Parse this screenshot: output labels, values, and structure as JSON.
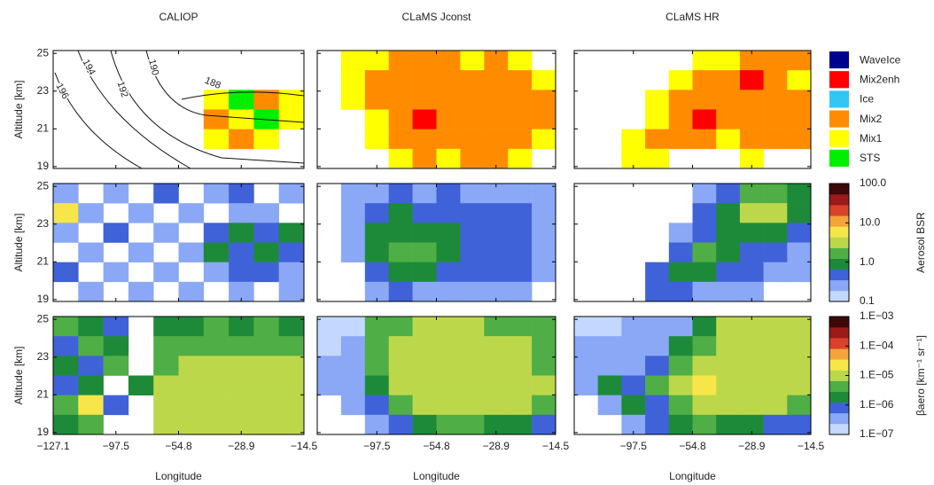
{
  "chart_data": [
    {
      "type": "heatmap",
      "title": "CALIOP",
      "ylabel": "Altitude [km]",
      "ylim": [
        18.9,
        25.15
      ],
      "yticks": [
        19,
        21,
        23,
        25
      ],
      "ytick_labels": true,
      "contours": [
        196,
        194,
        192,
        190,
        188
      ],
      "z": [
        [
          null,
          null,
          null,
          null,
          null,
          null,
          null,
          null,
          null,
          null
        ],
        [
          null,
          null,
          null,
          null,
          null,
          null,
          null,
          null,
          null,
          null
        ],
        [
          null,
          null,
          null,
          null,
          null,
          null,
          4,
          5,
          3,
          4
        ],
        [
          null,
          null,
          null,
          null,
          null,
          null,
          3,
          4,
          5,
          4
        ],
        [
          null,
          null,
          null,
          null,
          null,
          null,
          4,
          3,
          4,
          null
        ],
        [
          null,
          null,
          null,
          null,
          null,
          null,
          null,
          null,
          null,
          null
        ]
      ]
    },
    {
      "type": "heatmap",
      "title": "CLaMS Jconst",
      "ylim": [
        18.9,
        25.15
      ],
      "yticks": [
        19,
        21,
        23,
        25
      ],
      "ytick_labels": false,
      "z": [
        [
          null,
          4,
          4,
          3,
          3,
          3,
          4,
          3,
          4,
          null
        ],
        [
          null,
          4,
          3,
          3,
          3,
          3,
          3,
          3,
          3,
          4
        ],
        [
          null,
          4,
          3,
          3,
          3,
          3,
          3,
          3,
          3,
          3
        ],
        [
          null,
          null,
          4,
          3,
          1,
          3,
          3,
          3,
          3,
          3
        ],
        [
          null,
          null,
          4,
          3,
          3,
          3,
          3,
          3,
          3,
          4
        ],
        [
          null,
          null,
          null,
          4,
          3,
          4,
          3,
          3,
          4,
          null
        ]
      ]
    },
    {
      "type": "heatmap",
      "title": "CLaMS HR",
      "ylim": [
        18.9,
        25.15
      ],
      "yticks": [
        19,
        21,
        23,
        25
      ],
      "ytick_labels": false,
      "z": [
        [
          null,
          null,
          null,
          null,
          null,
          4,
          4,
          3,
          3,
          3
        ],
        [
          null,
          null,
          null,
          null,
          4,
          3,
          3,
          1,
          3,
          4
        ],
        [
          null,
          null,
          null,
          4,
          3,
          3,
          3,
          3,
          3,
          3
        ],
        [
          null,
          null,
          null,
          4,
          3,
          1,
          3,
          3,
          3,
          3
        ],
        [
          null,
          null,
          4,
          3,
          3,
          3,
          4,
          3,
          3,
          3
        ],
        [
          null,
          null,
          4,
          4,
          null,
          null,
          null,
          4,
          null,
          null
        ]
      ]
    },
    {
      "type": "heatmap",
      "ylabel": "Altitude [km]",
      "ylim": [
        18.9,
        25.15
      ],
      "yticks": [
        19,
        21,
        23,
        25
      ],
      "ytick_labels": true,
      "z": [
        [
          0.3,
          null,
          0.2,
          null,
          0.5,
          null,
          0.2,
          0.4,
          null,
          0.2
        ],
        [
          5,
          0.2,
          null,
          0.3,
          null,
          0.2,
          null,
          0.3,
          0.2,
          null
        ],
        [
          0.2,
          null,
          0.4,
          null,
          0.2,
          null,
          0.6,
          0.8,
          0.5,
          0.9
        ],
        [
          null,
          0.3,
          null,
          0.2,
          null,
          0.3,
          0.7,
          0.5,
          0.9,
          0.6
        ],
        [
          0.4,
          null,
          0.2,
          null,
          0.3,
          null,
          0.3,
          0.6,
          0.4,
          0.3
        ],
        [
          null,
          0.2,
          null,
          0.3,
          null,
          0.2,
          null,
          0.2,
          null,
          0.3
        ]
      ]
    },
    {
      "type": "heatmap",
      "ylim": [
        18.9,
        25.15
      ],
      "yticks": [
        19,
        21,
        23,
        25
      ],
      "ytick_labels": false,
      "z": [
        [
          null,
          0.2,
          0.3,
          0.5,
          0.3,
          0.4,
          0.3,
          0.3,
          0.2,
          0.2
        ],
        [
          null,
          0.3,
          0.6,
          0.8,
          0.6,
          0.5,
          0.4,
          0.5,
          0.4,
          0.3
        ],
        [
          null,
          0.3,
          0.8,
          1.2,
          1.0,
          0.7,
          0.5,
          0.6,
          0.5,
          0.3
        ],
        [
          null,
          0.2,
          0.9,
          1.5,
          2.0,
          0.8,
          0.4,
          0.6,
          0.5,
          0.3
        ],
        [
          null,
          null,
          0.5,
          0.9,
          0.8,
          0.6,
          0.5,
          0.5,
          0.4,
          0.2
        ],
        [
          null,
          null,
          0.2,
          0.4,
          0.3,
          0.3,
          0.2,
          0.3,
          0.2,
          null
        ]
      ]
    },
    {
      "type": "heatmap",
      "ylim": [
        18.9,
        25.15
      ],
      "yticks": [
        19,
        21,
        23,
        25
      ],
      "ytick_labels": false,
      "z": [
        [
          null,
          null,
          null,
          null,
          null,
          0.3,
          0.6,
          1.5,
          1.8,
          0.8
        ],
        [
          null,
          null,
          null,
          null,
          null,
          0.6,
          1.2,
          2.5,
          3.0,
          1.2
        ],
        [
          null,
          null,
          null,
          null,
          0.3,
          0.6,
          0.8,
          0.9,
          0.7,
          0.4
        ],
        [
          null,
          null,
          null,
          null,
          0.4,
          1.5,
          0.8,
          0.5,
          0.4,
          0.3
        ],
        [
          null,
          null,
          null,
          0.5,
          1.2,
          0.7,
          0.5,
          0.4,
          0.3,
          0.2
        ],
        [
          null,
          null,
          null,
          0.6,
          0.4,
          0.3,
          0.2,
          0.2,
          null,
          null
        ]
      ]
    },
    {
      "type": "heatmap",
      "ylabel": "Altitude [km]",
      "xlabel": "Longitude",
      "ylim": [
        18.9,
        25.15
      ],
      "yticks": [
        19,
        21,
        23,
        25
      ],
      "ytick_labels": true,
      "xticks": [
        "−127.1",
        "−97.5",
        "−54.8",
        "−28.9",
        "−14.5"
      ],
      "z": [
        [
          3e-06,
          2e-06,
          1e-06,
          null,
          1.5e-06,
          2e-06,
          3e-06,
          2e-06,
          3e-06,
          2e-06
        ],
        [
          1e-06,
          4e-06,
          2e-06,
          null,
          3e-06,
          5e-06,
          4e-06,
          5e-06,
          4e-06,
          5e-06
        ],
        [
          2e-06,
          1e-06,
          3e-06,
          null,
          6e-06,
          8e-06,
          7e-06,
          8e-06,
          9e-06,
          7e-06
        ],
        [
          1e-06,
          2e-06,
          null,
          2e-06,
          8e-06,
          9e-06,
          1e-05,
          9e-06,
          1.2e-05,
          8e-06
        ],
        [
          3e-06,
          2.5e-05,
          1e-06,
          null,
          7e-06,
          9e-06,
          8e-06,
          1.2e-05,
          9e-06,
          1e-05
        ],
        [
          2e-06,
          3e-06,
          null,
          null,
          8e-06,
          1e-05,
          9e-06,
          8e-06,
          1e-05,
          9e-06
        ]
      ]
    },
    {
      "type": "heatmap",
      "xlabel": "Longitude",
      "ylim": [
        18.9,
        25.15
      ],
      "yticks": [
        19,
        21,
        23,
        25
      ],
      "ytick_labels": false,
      "xticks": [
        null,
        "−97.5",
        "−54.8",
        "−28.9",
        "−14.5"
      ],
      "z": [
        [
          2e-07,
          2e-07,
          3e-06,
          6e-06,
          7e-06,
          8e-06,
          7e-06,
          6e-06,
          5e-06,
          3e-06
        ],
        [
          2e-07,
          3e-07,
          4e-06,
          9e-06,
          1e-05,
          9e-06,
          8e-06,
          9e-06,
          8e-06,
          5e-06
        ],
        [
          2.5e-07,
          4e-07,
          5e-06,
          1e-05,
          1.3e-05,
          1.1e-05,
          1e-05,
          1.1e-05,
          9e-06,
          6e-06
        ],
        [
          3e-07,
          4e-07,
          2e-06,
          9e-06,
          1.4e-05,
          1.5e-05,
          1.2e-05,
          1e-05,
          9e-06,
          7e-06
        ],
        [
          null,
          4e-07,
          6e-07,
          4e-06,
          9e-06,
          1.3e-05,
          1e-05,
          9e-06,
          8e-06,
          6e-06
        ],
        [
          null,
          null,
          4e-07,
          6e-07,
          2e-06,
          4e-06,
          3e-06,
          2e-06,
          2e-06,
          1e-06
        ]
      ]
    },
    {
      "type": "heatmap",
      "xlabel": "Longitude",
      "ylim": [
        18.9,
        25.15
      ],
      "yticks": [
        19,
        21,
        23,
        25
      ],
      "ytick_labels": false,
      "xticks": [
        null,
        "−97.5",
        "−54.8",
        "−28.9",
        "−14.5"
      ],
      "z": [
        [
          2e-07,
          2e-07,
          2.5e-07,
          3e-07,
          4e-07,
          2e-06,
          8e-06,
          1e-05,
          9e-06,
          8e-06
        ],
        [
          2.5e-07,
          2.5e-07,
          3e-07,
          4e-07,
          2e-06,
          6e-06,
          1e-05,
          1.2e-05,
          1.1e-05,
          9e-06
        ],
        [
          3e-07,
          3e-07,
          4e-07,
          6e-07,
          4e-06,
          9e-06,
          1.2e-05,
          1.3e-05,
          1.2e-05,
          9e-06
        ],
        [
          4e-07,
          2e-06,
          1e-06,
          3e-06,
          1.5e-05,
          2.5e-05,
          1.5e-05,
          1.2e-05,
          1e-05,
          8e-06
        ],
        [
          null,
          5e-07,
          2e-06,
          1e-06,
          5e-06,
          1.2e-05,
          9e-06,
          8e-06,
          7e-06,
          6e-06
        ],
        [
          null,
          null,
          5e-07,
          6e-07,
          2e-06,
          3e-06,
          2e-06,
          2e-06,
          1e-06,
          8e-07
        ]
      ]
    },
    {
      "type": "legend",
      "labels": [
        "WaveIce",
        "Mix2enh",
        "Ice",
        "Mix2",
        "Mix1",
        "STS"
      ],
      "colors": [
        "#00008f",
        "#ff0000",
        "#33c6f4",
        "#ff8c00",
        "#ffff00",
        "#00ee00"
      ]
    },
    {
      "type": "colorbar",
      "label": "Aerosol BSR",
      "log": true,
      "lim": [
        0.1,
        100
      ],
      "ticks": [
        0.1,
        {
          "value": 1,
          "label": "1.0"
        },
        {
          "value": 10,
          "label": "10.0"
        },
        {
          "value": 100,
          "label": "100.0"
        }
      ],
      "colors": [
        "#c4d8ff",
        "#8aa8f5",
        "#3f62d8",
        "#1d8a3a",
        "#4fae45",
        "#bcd84a",
        "#f6e64a",
        "#f3a43a",
        "#d9432b",
        "#9c1a18",
        "#3e0808"
      ]
    },
    {
      "type": "colorbar",
      "label": "βaero [km⁻¹ sr⁻¹]",
      "log": true,
      "lim": [
        1e-07,
        0.001
      ],
      "ticks": [
        {
          "value": 1e-07,
          "label": "1.E−07"
        },
        {
          "value": 1e-06,
          "label": "1.E−06"
        },
        {
          "value": 1e-05,
          "label": "1.E−05"
        },
        {
          "value": 0.0001,
          "label": "1.E−04"
        },
        {
          "value": 0.001,
          "label": "1.E−03"
        }
      ],
      "colors": [
        "#c4d8ff",
        "#8aa8f5",
        "#3f62d8",
        "#1d8a3a",
        "#4fae45",
        "#bcd84a",
        "#f6e64a",
        "#f3a43a",
        "#d9432b",
        "#9c1a18",
        "#3e0808"
      ]
    }
  ]
}
